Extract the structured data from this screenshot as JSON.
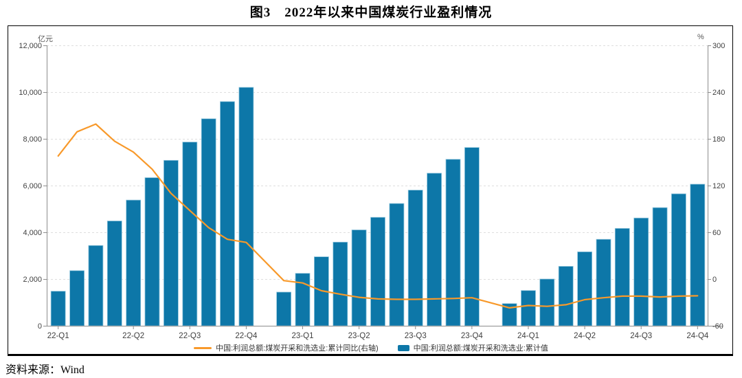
{
  "figure": {
    "title": "图3　2022年以来中国煤炭行业盈利情况",
    "source": "资料来源：Wind"
  },
  "chart_data": {
    "type": "bar+line",
    "title": "图3　2022年以来中国煤炭行业盈利情况",
    "left_axis": {
      "unit": "亿元",
      "min": 0,
      "max": 12000,
      "step": 2000,
      "tick_labels": [
        "0",
        "2,000",
        "4,000",
        "6,000",
        "8,000",
        "10,000",
        "12,000"
      ]
    },
    "right_axis": {
      "unit": "%",
      "min": -60,
      "max": 300,
      "step": 60,
      "tick_labels": [
        "-60",
        "0",
        "60",
        "120",
        "180",
        "240",
        "300"
      ]
    },
    "x_tick_labels": [
      "22-Q1",
      "22-Q2",
      "22-Q3",
      "22-Q4",
      "23-Q1",
      "23-Q2",
      "23-Q3",
      "23-Q4",
      "24-Q1",
      "24-Q2",
      "24-Q3",
      "24-Q4"
    ],
    "grid": "horizontal dashed",
    "legend_position": "bottom-center",
    "legend": [
      {
        "label": "中国:利润总额:煤炭开采和洗选业:累计同比(右轴)",
        "type": "line",
        "color": "#F8992A"
      },
      {
        "label": "中国:利润总额:煤炭开采和洗选业:累计值",
        "type": "bar",
        "color": "#0D77A8"
      }
    ],
    "colors": {
      "bar": "#0D77A8",
      "bar_edge": "#8EC4DC",
      "line": "#F8992A",
      "grid": "#DEDEDE",
      "axis": "#8C8C8C",
      "tick_text": "#404040"
    },
    "series_slots": [
      {
        "month": "2022-02",
        "bar": 1480,
        "yoy": 158
      },
      {
        "month": "2022-03",
        "bar": 2358,
        "yoy": 189
      },
      {
        "month": "2022-04",
        "bar": 3435,
        "yoy": 199
      },
      {
        "month": "2022-05",
        "bar": 4485,
        "yoy": 177
      },
      {
        "month": "2022-06",
        "bar": 5380,
        "yoy": 163
      },
      {
        "month": "2022-07",
        "bar": 6338,
        "yoy": 141
      },
      {
        "month": "2022-08",
        "bar": 7080,
        "yoy": 110
      },
      {
        "month": "2022-09",
        "bar": 7862,
        "yoy": 88
      },
      {
        "month": "2022-10",
        "bar": 8858,
        "yoy": 66
      },
      {
        "month": "2022-11",
        "bar": 9593,
        "yoy": 51
      },
      {
        "month": "2022-12",
        "bar": 10202,
        "yoy": 47
      },
      {
        "month": "2023-01",
        "bar": null,
        "yoy": null
      },
      {
        "month": "2023-02",
        "bar": 1442,
        "yoy": -2
      },
      {
        "month": "2023-03",
        "bar": 2244,
        "yoy": -5
      },
      {
        "month": "2023-04",
        "bar": 2952,
        "yoy": -15
      },
      {
        "month": "2023-05",
        "bar": 3580,
        "yoy": -19.5
      },
      {
        "month": "2023-06",
        "bar": 4103,
        "yoy": -23.5
      },
      {
        "month": "2023-07",
        "bar": 4641,
        "yoy": -25.5
      },
      {
        "month": "2023-08",
        "bar": 5231,
        "yoy": -26
      },
      {
        "month": "2023-09",
        "bar": 5805,
        "yoy": -26
      },
      {
        "month": "2023-10",
        "bar": 6530,
        "yoy": -25.5
      },
      {
        "month": "2023-11",
        "bar": 7124,
        "yoy": -25
      },
      {
        "month": "2023-12",
        "bar": 7629,
        "yoy": -24
      },
      {
        "month": "2024-01",
        "bar": null,
        "yoy": null
      },
      {
        "month": "2024-02",
        "bar": 950,
        "yoy": -37
      },
      {
        "month": "2024-03",
        "bar": 1508,
        "yoy": -34
      },
      {
        "month": "2024-04",
        "bar": 2000,
        "yoy": -35
      },
      {
        "month": "2024-05",
        "bar": 2543,
        "yoy": -33
      },
      {
        "month": "2024-06",
        "bar": 3164,
        "yoy": -26.5
      },
      {
        "month": "2024-07",
        "bar": 3700,
        "yoy": -24
      },
      {
        "month": "2024-08",
        "bar": 4168,
        "yoy": -22
      },
      {
        "month": "2024-09",
        "bar": 4612,
        "yoy": -22
      },
      {
        "month": "2024-10",
        "bar": 5055,
        "yoy": -23
      },
      {
        "month": "2024-11",
        "bar": 5646,
        "yoy": -22
      },
      {
        "month": "2024-12",
        "bar": 6060,
        "yoy": -21.5
      }
    ],
    "x_label_slot_indices": [
      0,
      4,
      7,
      10,
      13,
      16,
      19,
      22,
      25,
      28,
      31,
      34
    ]
  }
}
